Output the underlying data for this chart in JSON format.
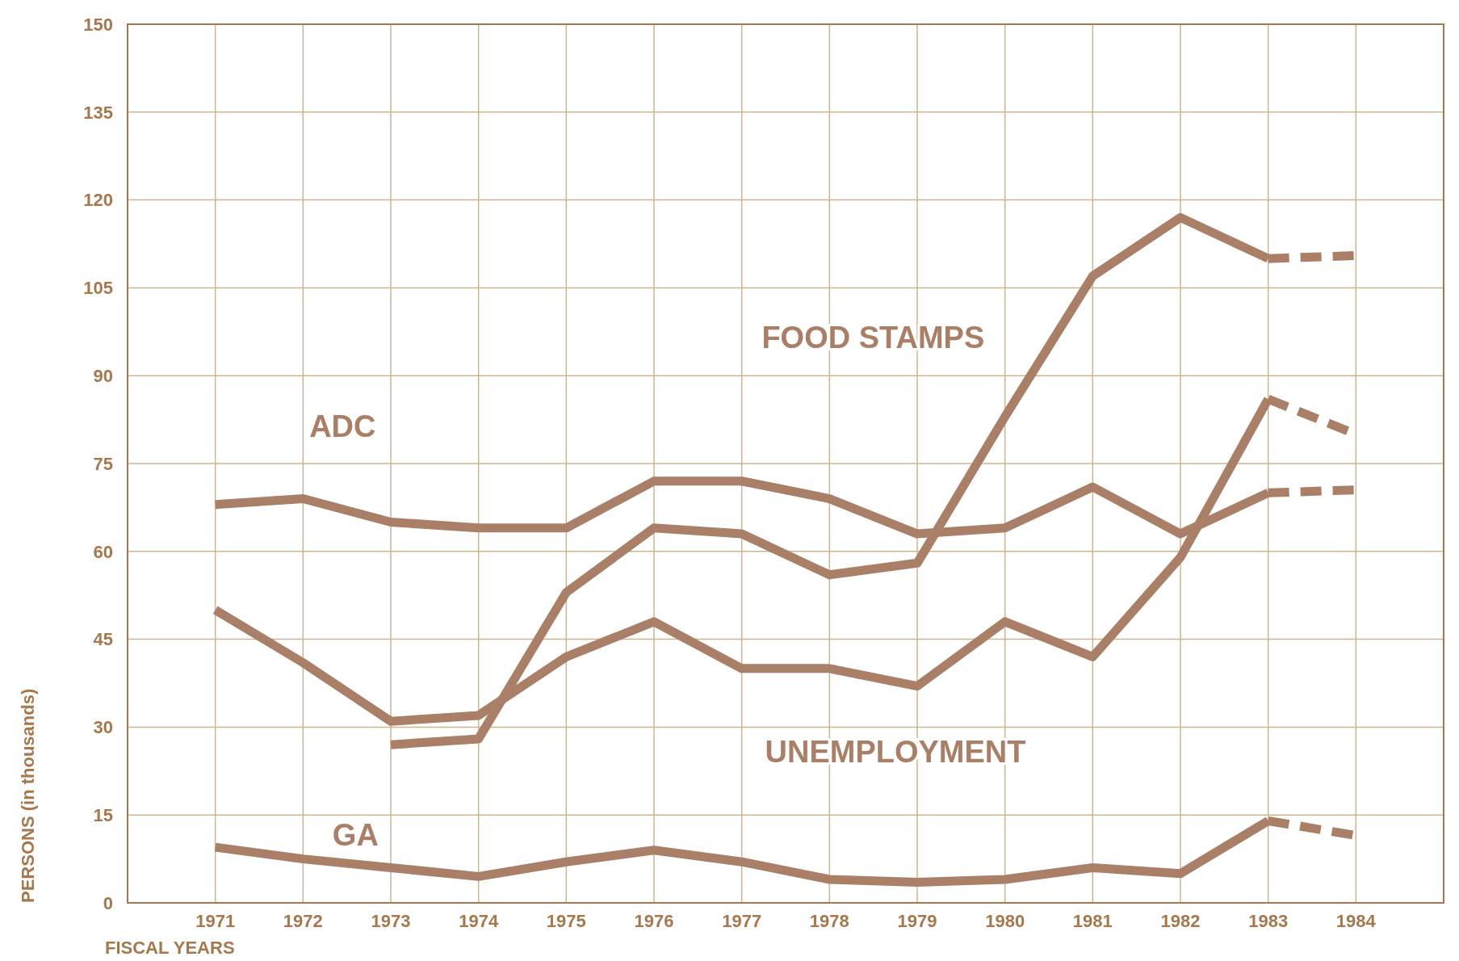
{
  "chart_data": {
    "type": "line",
    "xlabel": "FISCAL YEARS",
    "ylabel": "PERSONS (in thousands)",
    "xlim": [
      1970,
      1985
    ],
    "xticks": [
      1971,
      1972,
      1973,
      1974,
      1975,
      1976,
      1977,
      1978,
      1979,
      1980,
      1981,
      1982,
      1983,
      1984
    ],
    "ylim": [
      0,
      150
    ],
    "yticks": [
      0,
      15,
      30,
      45,
      60,
      75,
      90,
      105,
      120,
      135,
      150
    ],
    "grid": true,
    "marker": "none",
    "series": [
      {
        "name": "ADC",
        "color": "#a98067",
        "line_style": "solid",
        "x": [
          1971,
          1972,
          1973,
          1974,
          1975,
          1976,
          1977,
          1978,
          1979,
          1980,
          1981,
          1982,
          1983
        ],
        "values": [
          68,
          69,
          65,
          64,
          64,
          72,
          72,
          69,
          63,
          64,
          71,
          63,
          70
        ]
      },
      {
        "name": "FOOD STAMPS",
        "color": "#a98067",
        "line_style": "solid",
        "x": [
          1973,
          1974,
          1975,
          1976,
          1977,
          1978,
          1979,
          1980,
          1981,
          1982,
          1983
        ],
        "values": [
          27,
          28,
          53,
          64,
          63,
          56,
          58,
          83,
          107,
          117,
          110
        ]
      },
      {
        "name": "UNEMPLOYMENT",
        "color": "#a98067",
        "line_style": "solid",
        "x": [
          1971,
          1972,
          1973,
          1974,
          1975,
          1976,
          1977,
          1978,
          1979,
          1980,
          1981,
          1982,
          1983
        ],
        "values": [
          50,
          41,
          31,
          32,
          42,
          48,
          40,
          40,
          37,
          48,
          42,
          59,
          86
        ]
      },
      {
        "name": "GA",
        "color": "#a98067",
        "line_style": "solid",
        "x": [
          1971,
          1972,
          1973,
          1974,
          1975,
          1976,
          1977,
          1978,
          1979,
          1980,
          1981,
          1982,
          1983
        ],
        "values": [
          9.5,
          7.5,
          6,
          4.5,
          7,
          9,
          7,
          4,
          3.5,
          4,
          6,
          5,
          14
        ]
      },
      {
        "color": "#a98067",
        "line_style": "dashed",
        "x": [
          1983,
          1984
        ],
        "values": [
          70,
          70.5
        ]
      },
      {
        "color": "#a98067",
        "line_style": "dashed",
        "x": [
          1983,
          1984
        ],
        "values": [
          110,
          110.5
        ]
      },
      {
        "color": "#a98067",
        "line_style": "dashed",
        "x": [
          1983,
          1984
        ],
        "values": [
          86,
          80
        ]
      },
      {
        "color": "#a98067",
        "line_style": "dashed",
        "x": [
          1983,
          1984
        ],
        "values": [
          14,
          11.5
        ]
      }
    ]
  }
}
